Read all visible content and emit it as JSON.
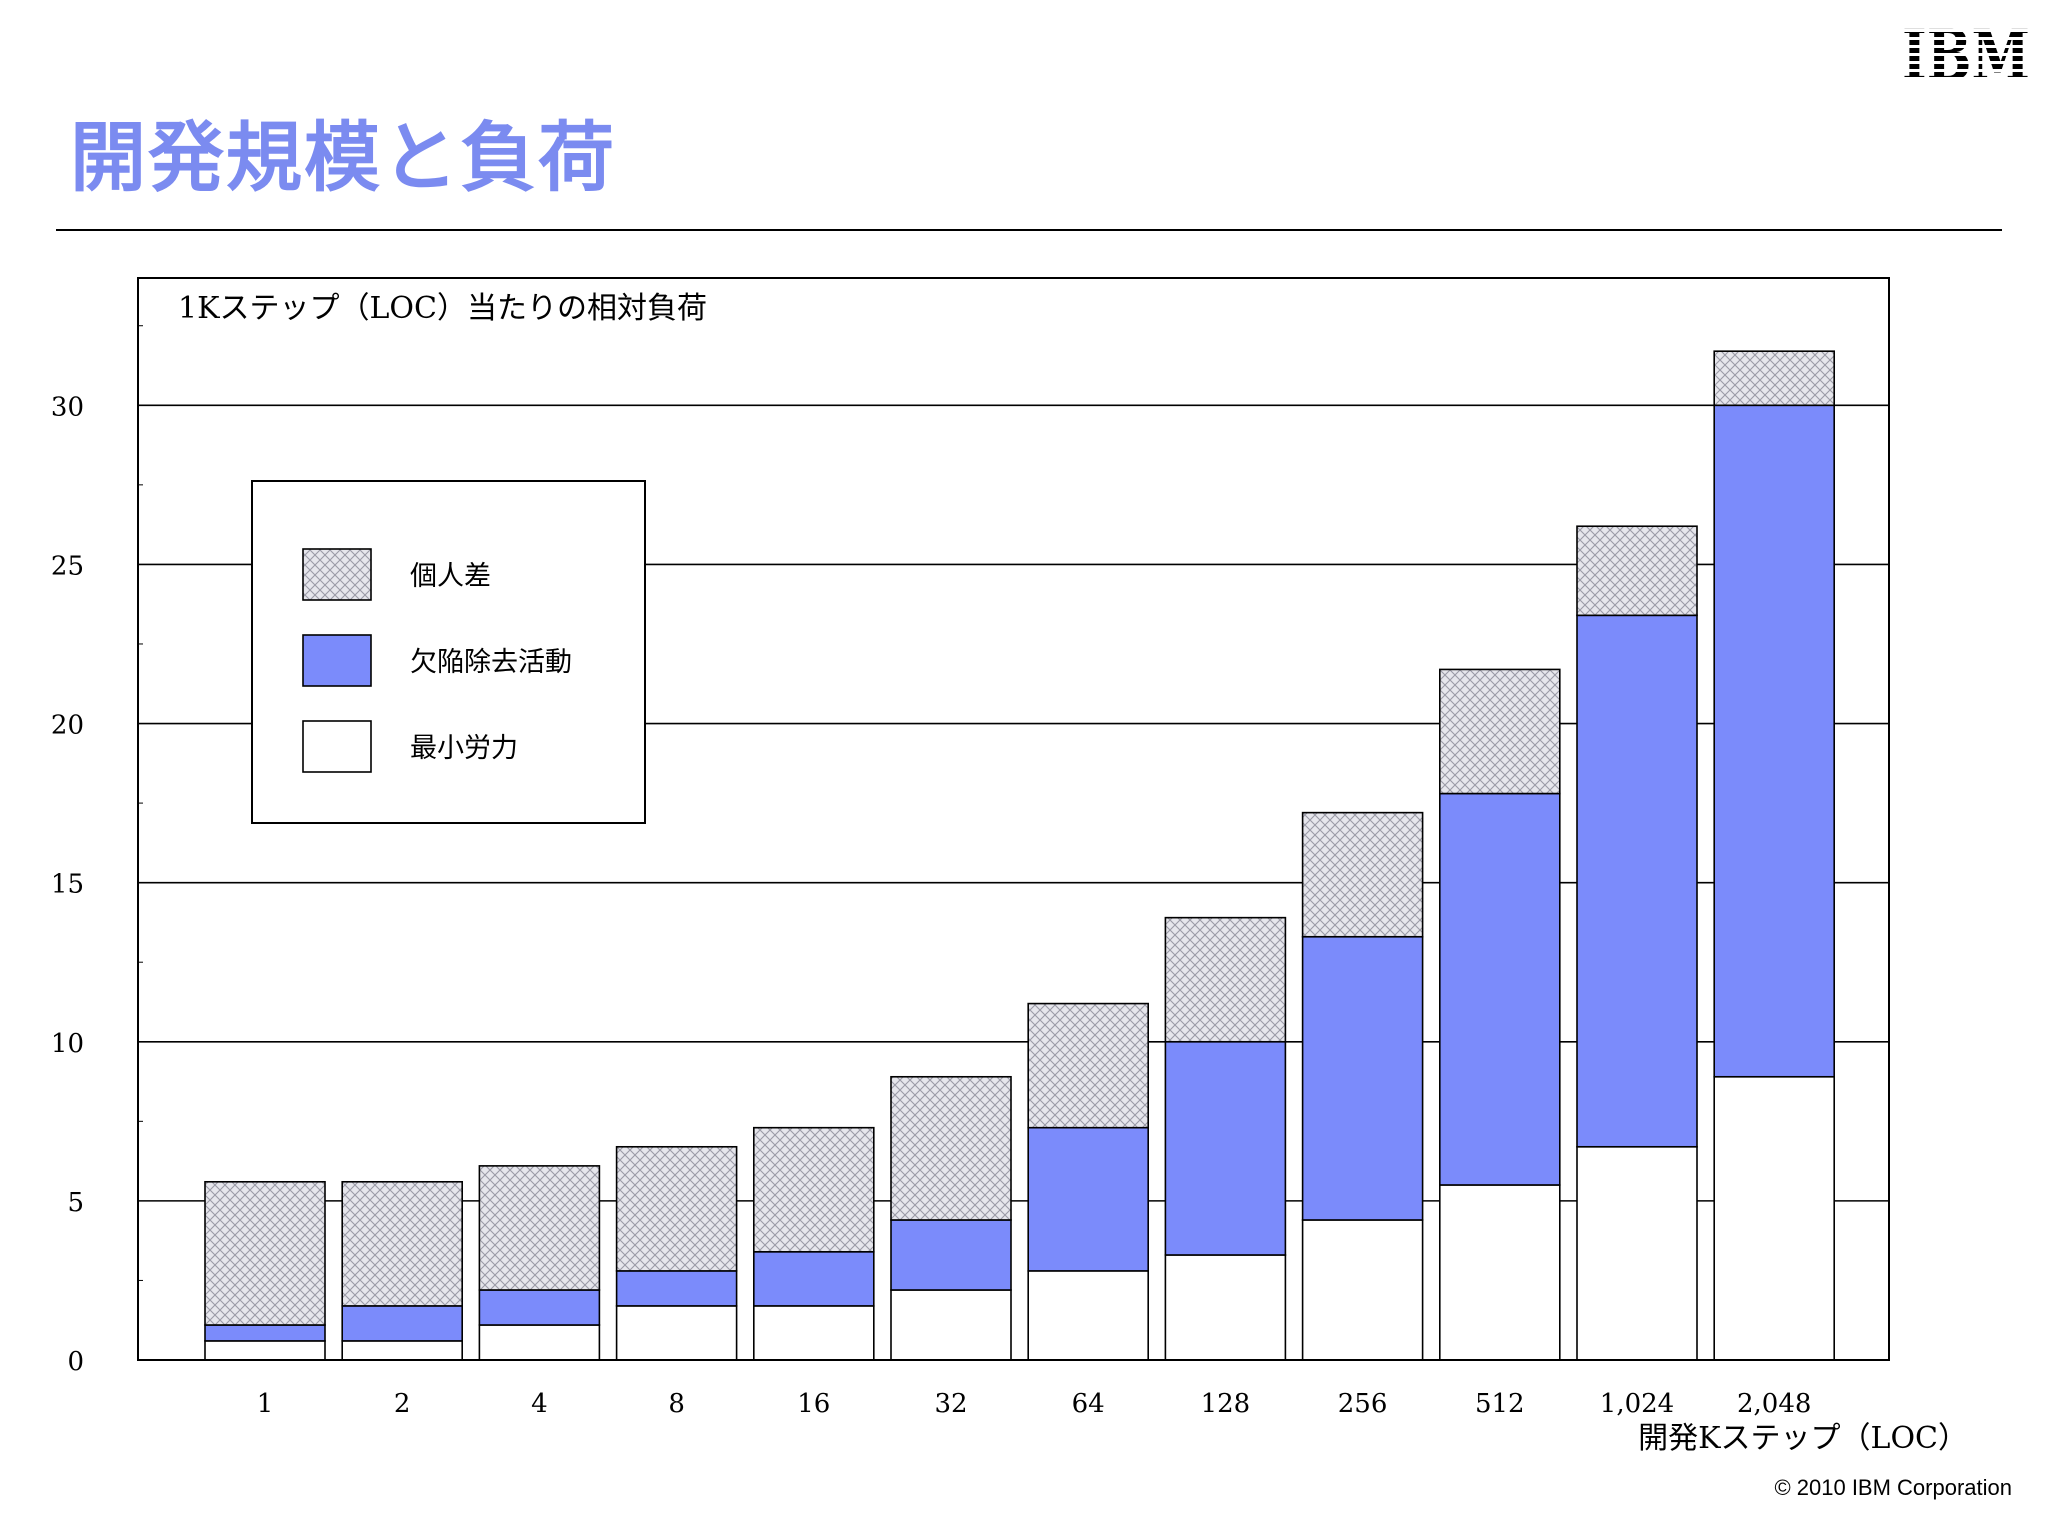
{
  "brand": {
    "logo_text": "IBM",
    "title_color": "#7b8bf0"
  },
  "slide": {
    "title": "開発規模と負荷",
    "copyright": "© 2010 IBM Corporation"
  },
  "chart_data": {
    "type": "bar",
    "stacked": true,
    "title": "1Kステップ（LOC）当たりの相対負荷",
    "xlabel": "開発Kステップ（LOC）",
    "ylabel": "",
    "ylim": [
      0,
      34
    ],
    "yticks": [
      0,
      5,
      10,
      15,
      20,
      25,
      30
    ],
    "grid": true,
    "legend_position": "top-left",
    "categories": [
      "1",
      "2",
      "4",
      "8",
      "16",
      "32",
      "64",
      "128",
      "256",
      "512",
      "1,024",
      "2,048"
    ],
    "series": [
      {
        "name": "最小労力",
        "color": "#ffffff",
        "values": [
          0.6,
          0.6,
          1.1,
          1.7,
          1.7,
          2.2,
          2.8,
          3.3,
          4.4,
          5.5,
          6.7,
          8.9
        ]
      },
      {
        "name": "欠陥除去活動",
        "color": "#7b8bfb",
        "values": [
          0.5,
          1.1,
          1.1,
          1.1,
          1.7,
          2.2,
          4.5,
          6.7,
          8.9,
          12.3,
          16.7,
          21.1
        ]
      },
      {
        "name": "個人差",
        "color": "#dcdce4",
        "pattern": "crosshatch",
        "values": [
          4.5,
          3.9,
          3.9,
          3.9,
          3.9,
          4.5,
          3.9,
          3.9,
          3.9,
          3.9,
          2.8,
          1.7
        ]
      }
    ],
    "legend_order": [
      "個人差",
      "欠陥除去活動",
      "最小労力"
    ]
  }
}
